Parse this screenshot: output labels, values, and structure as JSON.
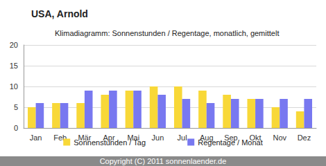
{
  "chart_data": {
    "type": "bar",
    "title": "USA, Arnold",
    "subtitle": "Klimadiagramm: Sonnenstunden / Regentage, monatlich, gemittelt",
    "categories": [
      "Jan",
      "Feb",
      "Mär",
      "Apr",
      "Mai",
      "Jun",
      "Jul",
      "Aug",
      "Sep",
      "Okt",
      "Nov",
      "Dez"
    ],
    "series": [
      {
        "name": "Sonnenstunden / Tag",
        "color": "#f8d838",
        "values": [
          5,
          6,
          6,
          8,
          9,
          10,
          10,
          9,
          8,
          7,
          5,
          4
        ]
      },
      {
        "name": "Regentage / Monat",
        "color": "#7878f0",
        "values": [
          6,
          6,
          9,
          9,
          9,
          8,
          7,
          6,
          7,
          7,
          7,
          7
        ]
      }
    ],
    "ylim": [
      0,
      20
    ],
    "yticks": [
      0,
      5,
      10,
      15,
      20
    ],
    "grid": true,
    "legend": "bottom",
    "annotations": [
      "Copyright (C) 2011 sonnenlaender.de"
    ]
  }
}
